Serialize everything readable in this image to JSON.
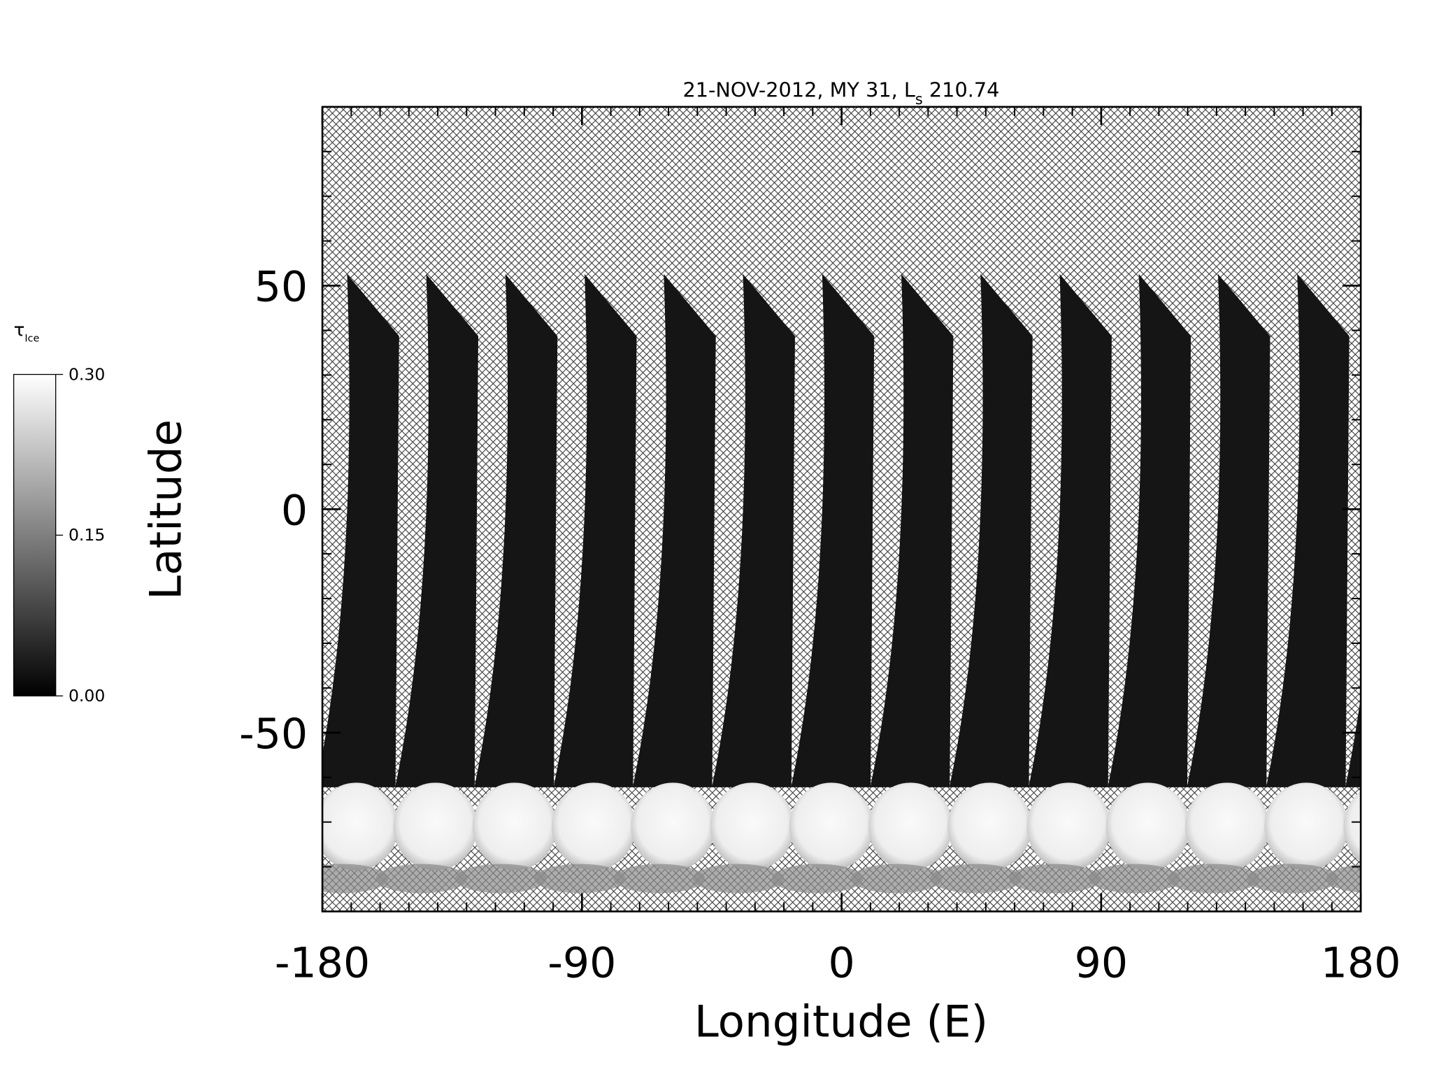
{
  "chart_data": {
    "type": "map",
    "title": [
      "21-NOV-2012, MY 31,  L",
      "s",
      " 210.74"
    ],
    "xlabel": "Longitude (E)",
    "ylabel": "Latitude",
    "xlim": [
      -180,
      180
    ],
    "ylim": [
      -90,
      90
    ],
    "xticks": [
      -180,
      -90,
      0,
      90,
      180
    ],
    "yticks": [
      -50,
      0,
      50
    ],
    "minor_tick_step": 10,
    "colorbar": {
      "label": [
        "τ",
        "Ice"
      ],
      "lim": [
        0,
        0.3
      ],
      "ticks": [
        {
          "value": 0,
          "label": "0.00"
        },
        {
          "value": 0.15,
          "label": "0.15"
        },
        {
          "value": 0.3,
          "label": "0.30"
        }
      ],
      "colormap": [
        "#000000",
        "#ffffff"
      ]
    }
  }
}
